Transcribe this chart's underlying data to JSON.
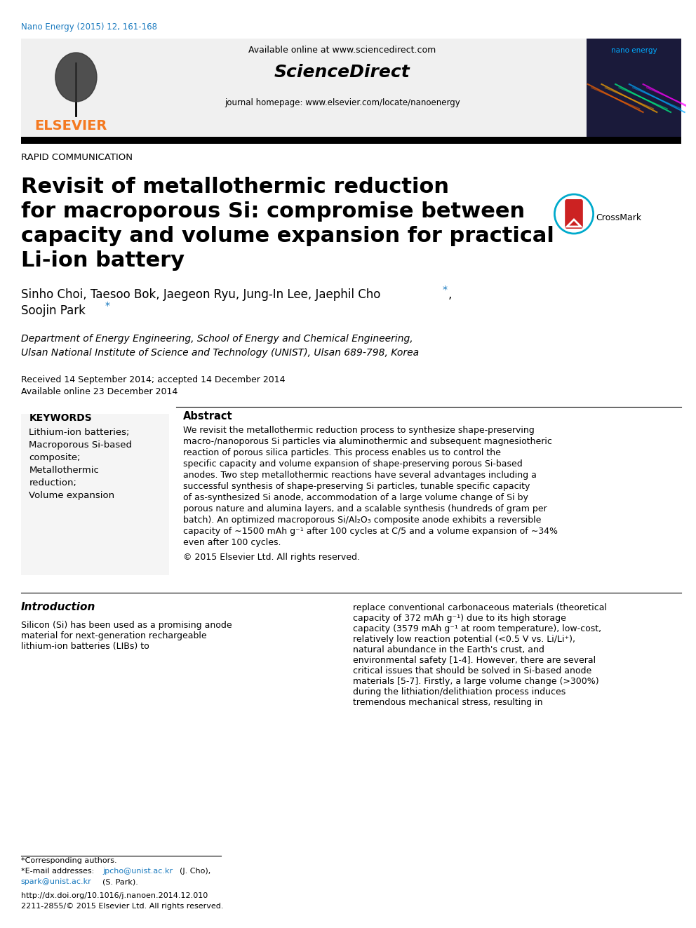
{
  "journal_ref": "Nano Energy (2015) 12, 161-168",
  "journal_ref_color": "#1a7abf",
  "available_online": "Available online at www.sciencedirect.com",
  "sciencedirect_text": "ScienceDirect",
  "journal_homepage": "journal homepage: www.elsevier.com/locate/nanoenergy",
  "section_label": "RAPID COMMUNICATION",
  "title_line1": "Revisit of metallothermic reduction",
  "title_line2": "for macroporous Si: compromise between",
  "title_line3": "capacity and volume expansion for practical",
  "title_line4": "Li-ion battery",
  "authors": "Sinho Choi, Taesoo Bok, Jaegeon Ryu, Jung-In Lee, Jaephil Cho*, Soojin Park*",
  "affiliation_line1": "Department of Energy Engineering, School of Energy and Chemical Engineering,",
  "affiliation_line2": "Ulsan National Institute of Science and Technology (UNIST), Ulsan 689-798, Korea",
  "received": "Received 14 September 2014; accepted 14 December 2014",
  "available": "Available online 23 December 2014",
  "keywords_title": "KEYWORDS",
  "keywords": [
    "Lithium-ion batteries;",
    "Macroporous Si-based",
    "composite;",
    "Metallothermic",
    "reduction;",
    "Volume expansion"
  ],
  "abstract_title": "Abstract",
  "abstract_text": "We revisit the metallothermic reduction process to synthesize shape-preserving macro-/nanoporous Si particles via aluminothermic and subsequent magnesiotheric reaction of porous silica particles. This process enables us to control the specific capacity and volume expansion of shape-preserving porous Si-based anodes. Two step metallothermic reactions have several advantages including a successful synthesis of shape-preserving Si particles, tunable specific capacity of as-synthesized Si anode, accommodation of a large volume change of Si by porous nature and alumina layers, and a scalable synthesis (hundreds of gram per batch). An optimized macroporous Si/Al₂O₃ composite anode exhibits a reversible capacity of ∼1500 mAh g⁻¹ after 100 cycles at C/5 and a volume expansion of ∼34% even after 100 cycles.",
  "copyright": "© 2015 Elsevier Ltd. All rights reserved.",
  "intro_title": "Introduction",
  "intro_text1": "Silicon (Si) has been used as a promising anode material for next-generation rechargeable lithium-ion batteries (LIBs) to",
  "intro_text2": "replace conventional carbonaceous materials (theoretical capacity of 372 mAh g⁻¹) due to its high storage capacity (3579 mAh g⁻¹ at room temperature), low-cost, relatively low reaction potential (<0.5 V vs. Li/Li⁺), natural abundance in the Earth's crust, and environmental safety [1-4]. However, there are several critical issues that should be solved in Si-based anode materials [5-7]. Firstly, a large volume change (>300%) during the lithiation/delithiation process induces tremendous mechanical stress, resulting in",
  "footnote1": "*Corresponding authors.",
  "footnote2": "E-mail addresses: jpcho@unist.ac.kr (J. Cho), spark@unist.ac.kr (S. Park).",
  "footnote3": "http://dx.doi.org/10.1016/j.nanoen.2014.12.010",
  "footnote4": "2211-2855/© 2015 Elsevier Ltd. All rights reserved.",
  "header_bg": "#f0f0f0",
  "elsevier_orange": "#f47920",
  "black_bar": "#000000",
  "bg_white": "#ffffff",
  "keyword_bg": "#f5f5f5",
  "link_color": "#1a7abf"
}
